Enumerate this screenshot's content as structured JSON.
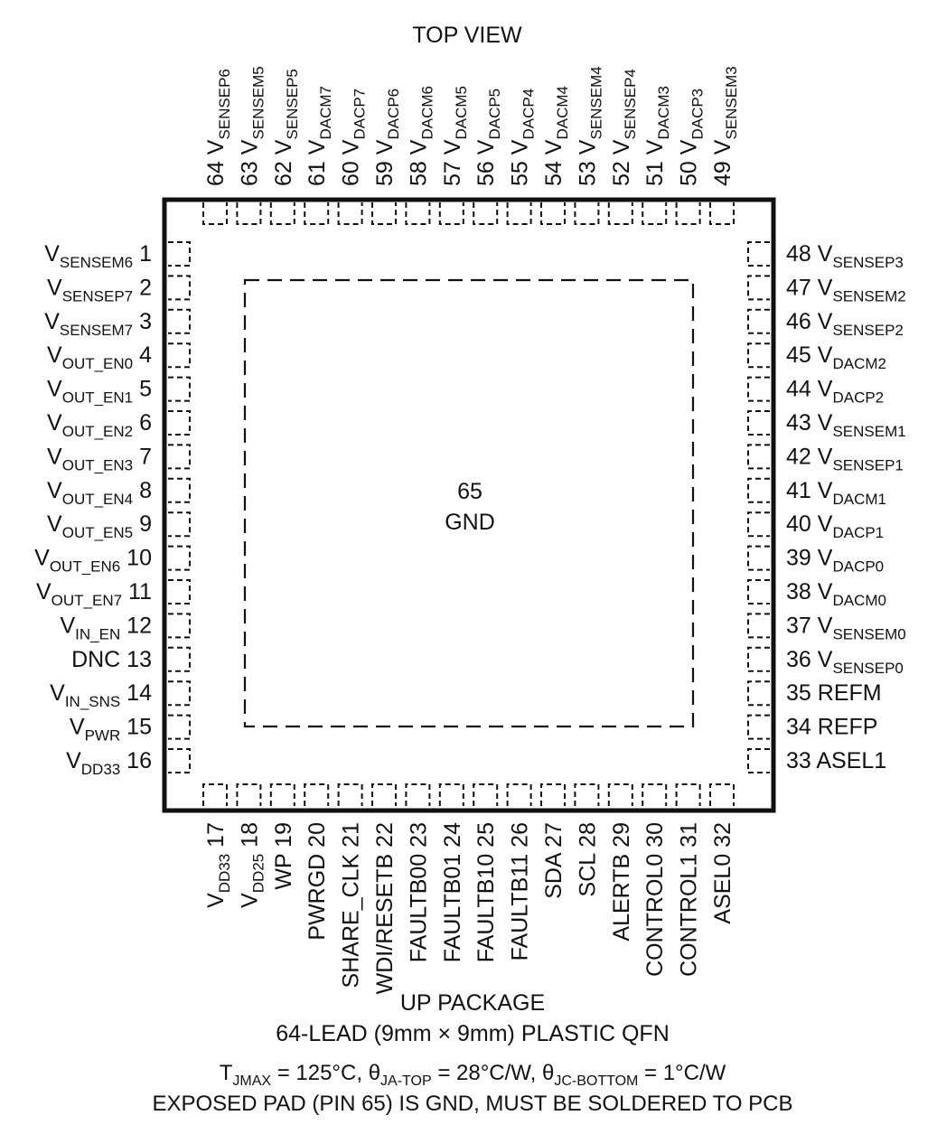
{
  "title": "TOP VIEW",
  "center": {
    "pin": "65",
    "name": "GND"
  },
  "pins": {
    "left": [
      {
        "num": "1",
        "main": "V",
        "sub": "SENSEM6"
      },
      {
        "num": "2",
        "main": "V",
        "sub": "SENSEP7"
      },
      {
        "num": "3",
        "main": "V",
        "sub": "SENSEM7"
      },
      {
        "num": "4",
        "main": "V",
        "sub": "OUT_EN0"
      },
      {
        "num": "5",
        "main": "V",
        "sub": "OUT_EN1"
      },
      {
        "num": "6",
        "main": "V",
        "sub": "OUT_EN2"
      },
      {
        "num": "7",
        "main": "V",
        "sub": "OUT_EN3"
      },
      {
        "num": "8",
        "main": "V",
        "sub": "OUT_EN4"
      },
      {
        "num": "9",
        "main": "V",
        "sub": "OUT_EN5"
      },
      {
        "num": "10",
        "main": "V",
        "sub": "OUT_EN6"
      },
      {
        "num": "11",
        "main": "V",
        "sub": "OUT_EN7"
      },
      {
        "num": "12",
        "main": "V",
        "sub": "IN_EN"
      },
      {
        "num": "13",
        "main": "DNC",
        "sub": ""
      },
      {
        "num": "14",
        "main": "V",
        "sub": "IN_SNS"
      },
      {
        "num": "15",
        "main": "V",
        "sub": "PWR"
      },
      {
        "num": "16",
        "main": "V",
        "sub": "DD33"
      }
    ],
    "right": [
      {
        "num": "48",
        "main": "V",
        "sub": "SENSEP3"
      },
      {
        "num": "47",
        "main": "V",
        "sub": "SENSEM2"
      },
      {
        "num": "46",
        "main": "V",
        "sub": "SENSEP2"
      },
      {
        "num": "45",
        "main": "V",
        "sub": "DACM2"
      },
      {
        "num": "44",
        "main": "V",
        "sub": "DACP2"
      },
      {
        "num": "43",
        "main": "V",
        "sub": "SENSEM1"
      },
      {
        "num": "42",
        "main": "V",
        "sub": "SENSEP1"
      },
      {
        "num": "41",
        "main": "V",
        "sub": "DACM1"
      },
      {
        "num": "40",
        "main": "V",
        "sub": "DACP1"
      },
      {
        "num": "39",
        "main": "V",
        "sub": "DACP0"
      },
      {
        "num": "38",
        "main": "V",
        "sub": "DACM0"
      },
      {
        "num": "37",
        "main": "V",
        "sub": "SENSEM0"
      },
      {
        "num": "36",
        "main": "V",
        "sub": "SENSEP0"
      },
      {
        "num": "35",
        "main": "REFM",
        "sub": ""
      },
      {
        "num": "34",
        "main": "REFP",
        "sub": ""
      },
      {
        "num": "33",
        "main": "ASEL1",
        "sub": ""
      }
    ],
    "top": [
      {
        "num": "64",
        "main": "V",
        "sub": "SENSEP6"
      },
      {
        "num": "63",
        "main": "V",
        "sub": "SENSEM5"
      },
      {
        "num": "62",
        "main": "V",
        "sub": "SENSEP5"
      },
      {
        "num": "61",
        "main": "V",
        "sub": "DACM7"
      },
      {
        "num": "60",
        "main": "V",
        "sub": "DACP7"
      },
      {
        "num": "59",
        "main": "V",
        "sub": "DACP6"
      },
      {
        "num": "58",
        "main": "V",
        "sub": "DACM6"
      },
      {
        "num": "57",
        "main": "V",
        "sub": "DACM5"
      },
      {
        "num": "56",
        "main": "V",
        "sub": "DACP5"
      },
      {
        "num": "55",
        "main": "V",
        "sub": "DACP4"
      },
      {
        "num": "54",
        "main": "V",
        "sub": "DACM4"
      },
      {
        "num": "53",
        "main": "V",
        "sub": "SENSEM4"
      },
      {
        "num": "52",
        "main": "V",
        "sub": "SENSEP4"
      },
      {
        "num": "51",
        "main": "V",
        "sub": "DACM3"
      },
      {
        "num": "50",
        "main": "V",
        "sub": "DACP3"
      },
      {
        "num": "49",
        "main": "V",
        "sub": "SENSEM3"
      }
    ],
    "bottom": [
      {
        "num": "17",
        "main": "V",
        "sub": "DD33"
      },
      {
        "num": "18",
        "main": "V",
        "sub": "DD25"
      },
      {
        "num": "19",
        "main": "WP",
        "sub": ""
      },
      {
        "num": "20",
        "main": "PWRGD",
        "sub": ""
      },
      {
        "num": "21",
        "main": "SHARE_CLK",
        "sub": ""
      },
      {
        "num": "22",
        "main": "WDI/RESETB",
        "sub": ""
      },
      {
        "num": "23",
        "main": "FAULTB00",
        "sub": ""
      },
      {
        "num": "24",
        "main": "FAULTB01",
        "sub": ""
      },
      {
        "num": "25",
        "main": "FAULTB10",
        "sub": ""
      },
      {
        "num": "26",
        "main": "FAULTB11",
        "sub": ""
      },
      {
        "num": "27",
        "main": "SDA",
        "sub": ""
      },
      {
        "num": "28",
        "main": "SCL",
        "sub": ""
      },
      {
        "num": "29",
        "main": "ALERTB",
        "sub": ""
      },
      {
        "num": "30",
        "main": "CONTROL0",
        "sub": ""
      },
      {
        "num": "31",
        "main": "CONTROL1",
        "sub": ""
      },
      {
        "num": "32",
        "main": "ASEL0",
        "sub": ""
      }
    ]
  },
  "footer": {
    "package": "UP PACKAGE",
    "description": "64-LEAD (9mm × 9mm) PLASTIC QFN",
    "thermal": [
      {
        "t": "T",
        "s": ""
      },
      {
        "t": "",
        "s": "JMAX"
      },
      {
        "t": " = 125°C, θ",
        "s": ""
      },
      {
        "t": "",
        "s": "JA-TOP"
      },
      {
        "t": " = 28°C/W, θ",
        "s": ""
      },
      {
        "t": "",
        "s": "JC-BOTTOM"
      },
      {
        "t": " = 1°C/W",
        "s": ""
      }
    ],
    "note": "EXPOSED PAD (PIN 65) IS GND, MUST BE SOLDERED TO PCB"
  }
}
